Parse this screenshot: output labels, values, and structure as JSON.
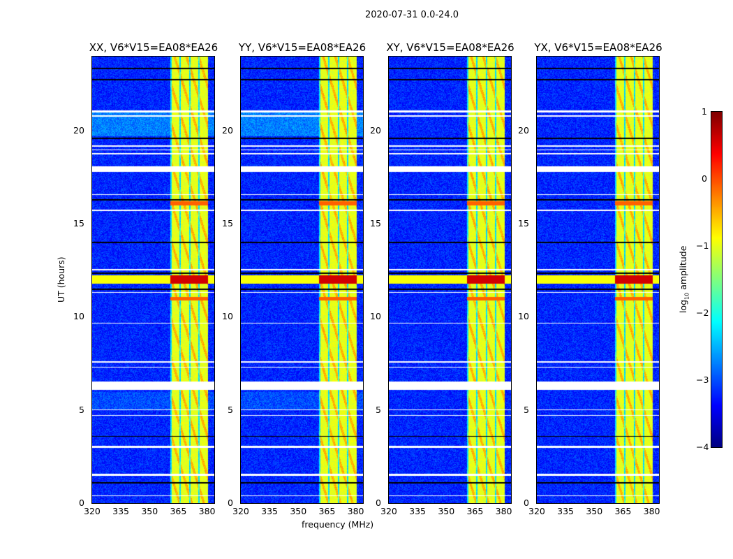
{
  "chart_data": {
    "type": "heatmap",
    "title": "2020-07-31 0.0-24.0",
    "xlabel": "frequency (MHz)",
    "ylabel": "UT (hours)",
    "xlim": [
      320,
      384.5
    ],
    "ylim": [
      0,
      24
    ],
    "xticks": [
      "320",
      "335",
      "350",
      "365",
      "380"
    ],
    "yticks": [
      "0",
      "5",
      "10",
      "15",
      "20"
    ],
    "colorbar": {
      "label": "log10 amplitude",
      "label_main": "log",
      "label_sub": "10",
      "label_rest": " amplitude",
      "range": [
        -4,
        1
      ],
      "ticks": [
        "1",
        "0",
        "−1",
        "−2",
        "−3",
        "−4"
      ],
      "colormap": "jet"
    },
    "panels": [
      {
        "title": "XX, V6*V15=EA08*EA26",
        "pol": "XX"
      },
      {
        "title": "YY, V6*V15=EA08*EA26",
        "pol": "YY"
      },
      {
        "title": "XY, V6*V15=EA08*EA26",
        "pol": "XY"
      },
      {
        "title": "YX, V6*V15=EA08*EA26",
        "pol": "YX"
      }
    ],
    "rfi_band_mhz": [
      361,
      380.5
    ],
    "background_level": -3.2,
    "rfi_level": -1.0,
    "flagged_ut_ranges": [
      [
        17.8,
        18.1
      ],
      [
        6.1,
        6.55
      ],
      [
        21.0,
        21.1
      ],
      [
        20.75,
        20.82
      ],
      [
        19.15,
        19.22
      ],
      [
        18.95,
        19.0
      ],
      [
        18.75,
        18.8
      ],
      [
        16.55,
        16.6
      ],
      [
        15.7,
        15.75
      ],
      [
        12.5,
        12.58
      ],
      [
        11.3,
        11.36
      ],
      [
        9.65,
        9.7
      ],
      [
        7.55,
        7.62
      ],
      [
        7.3,
        7.35
      ],
      [
        5.0,
        5.05
      ],
      [
        4.7,
        4.75
      ],
      [
        3.0,
        3.08
      ],
      [
        1.5,
        1.58
      ],
      [
        0.4,
        0.45
      ]
    ],
    "dropout_ut": [
      23.35,
      22.75,
      19.6,
      16.3,
      14.0,
      12.35,
      11.5,
      3.6,
      1.1
    ],
    "strong_rfi_ut_ranges": [
      [
        11.8,
        12.25
      ],
      [
        10.9,
        11.1
      ],
      [
        16.0,
        16.2
      ]
    ]
  }
}
